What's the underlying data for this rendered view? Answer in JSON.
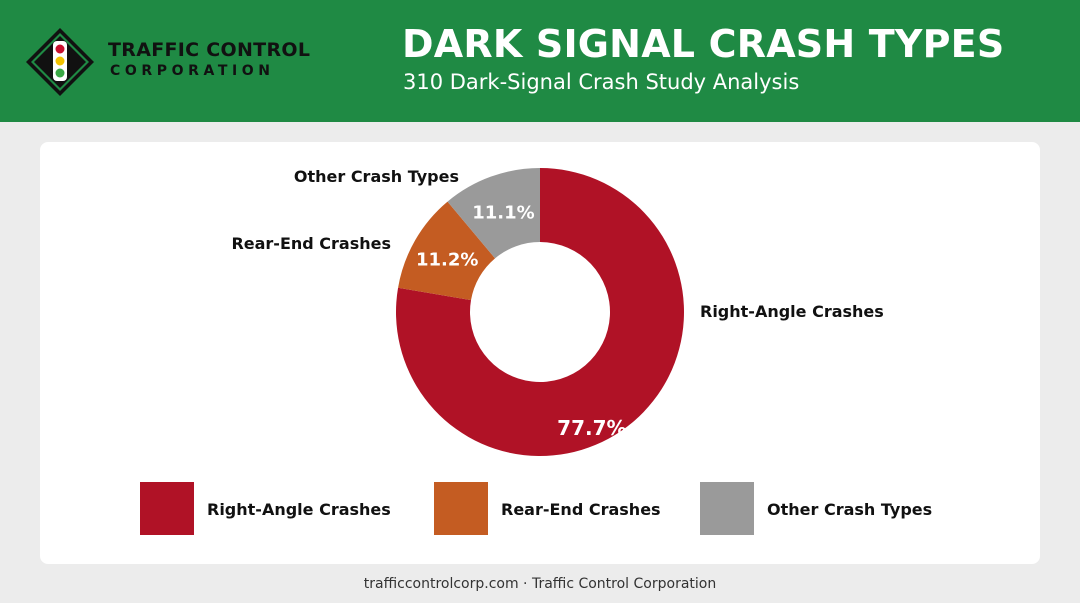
{
  "header": {
    "brand_line1": "TRAFFIC CONTROL",
    "brand_line2": "CORPORATION",
    "title": "DARK SIGNAL CRASH TYPES",
    "subtitle": "310 Dark-Signal Crash Study Analysis",
    "logo_icon": "traffic-light-icon"
  },
  "footer": {
    "text": "trafficcontrolcorp.com · Traffic Control Corporation"
  },
  "colors": {
    "header_bg": "#1f8a44",
    "right_angle": "#b01226",
    "rear_end": "#c45c22",
    "other": "#9a9a9a"
  },
  "chart_data": {
    "type": "pie",
    "donut": true,
    "categories": [
      "Right-Angle Crashes",
      "Rear-End Crashes",
      "Other Crash Types"
    ],
    "values": [
      77.7,
      11.2,
      11.1
    ],
    "value_labels": [
      "77.7%",
      "11.2%",
      "11.1%"
    ],
    "colors": [
      "#b01226",
      "#c45c22",
      "#9a9a9a"
    ],
    "legend_position": "bottom",
    "legend": [
      "Right-Angle Crashes",
      "Rear-End Crashes",
      "Other Crash Types"
    ]
  }
}
